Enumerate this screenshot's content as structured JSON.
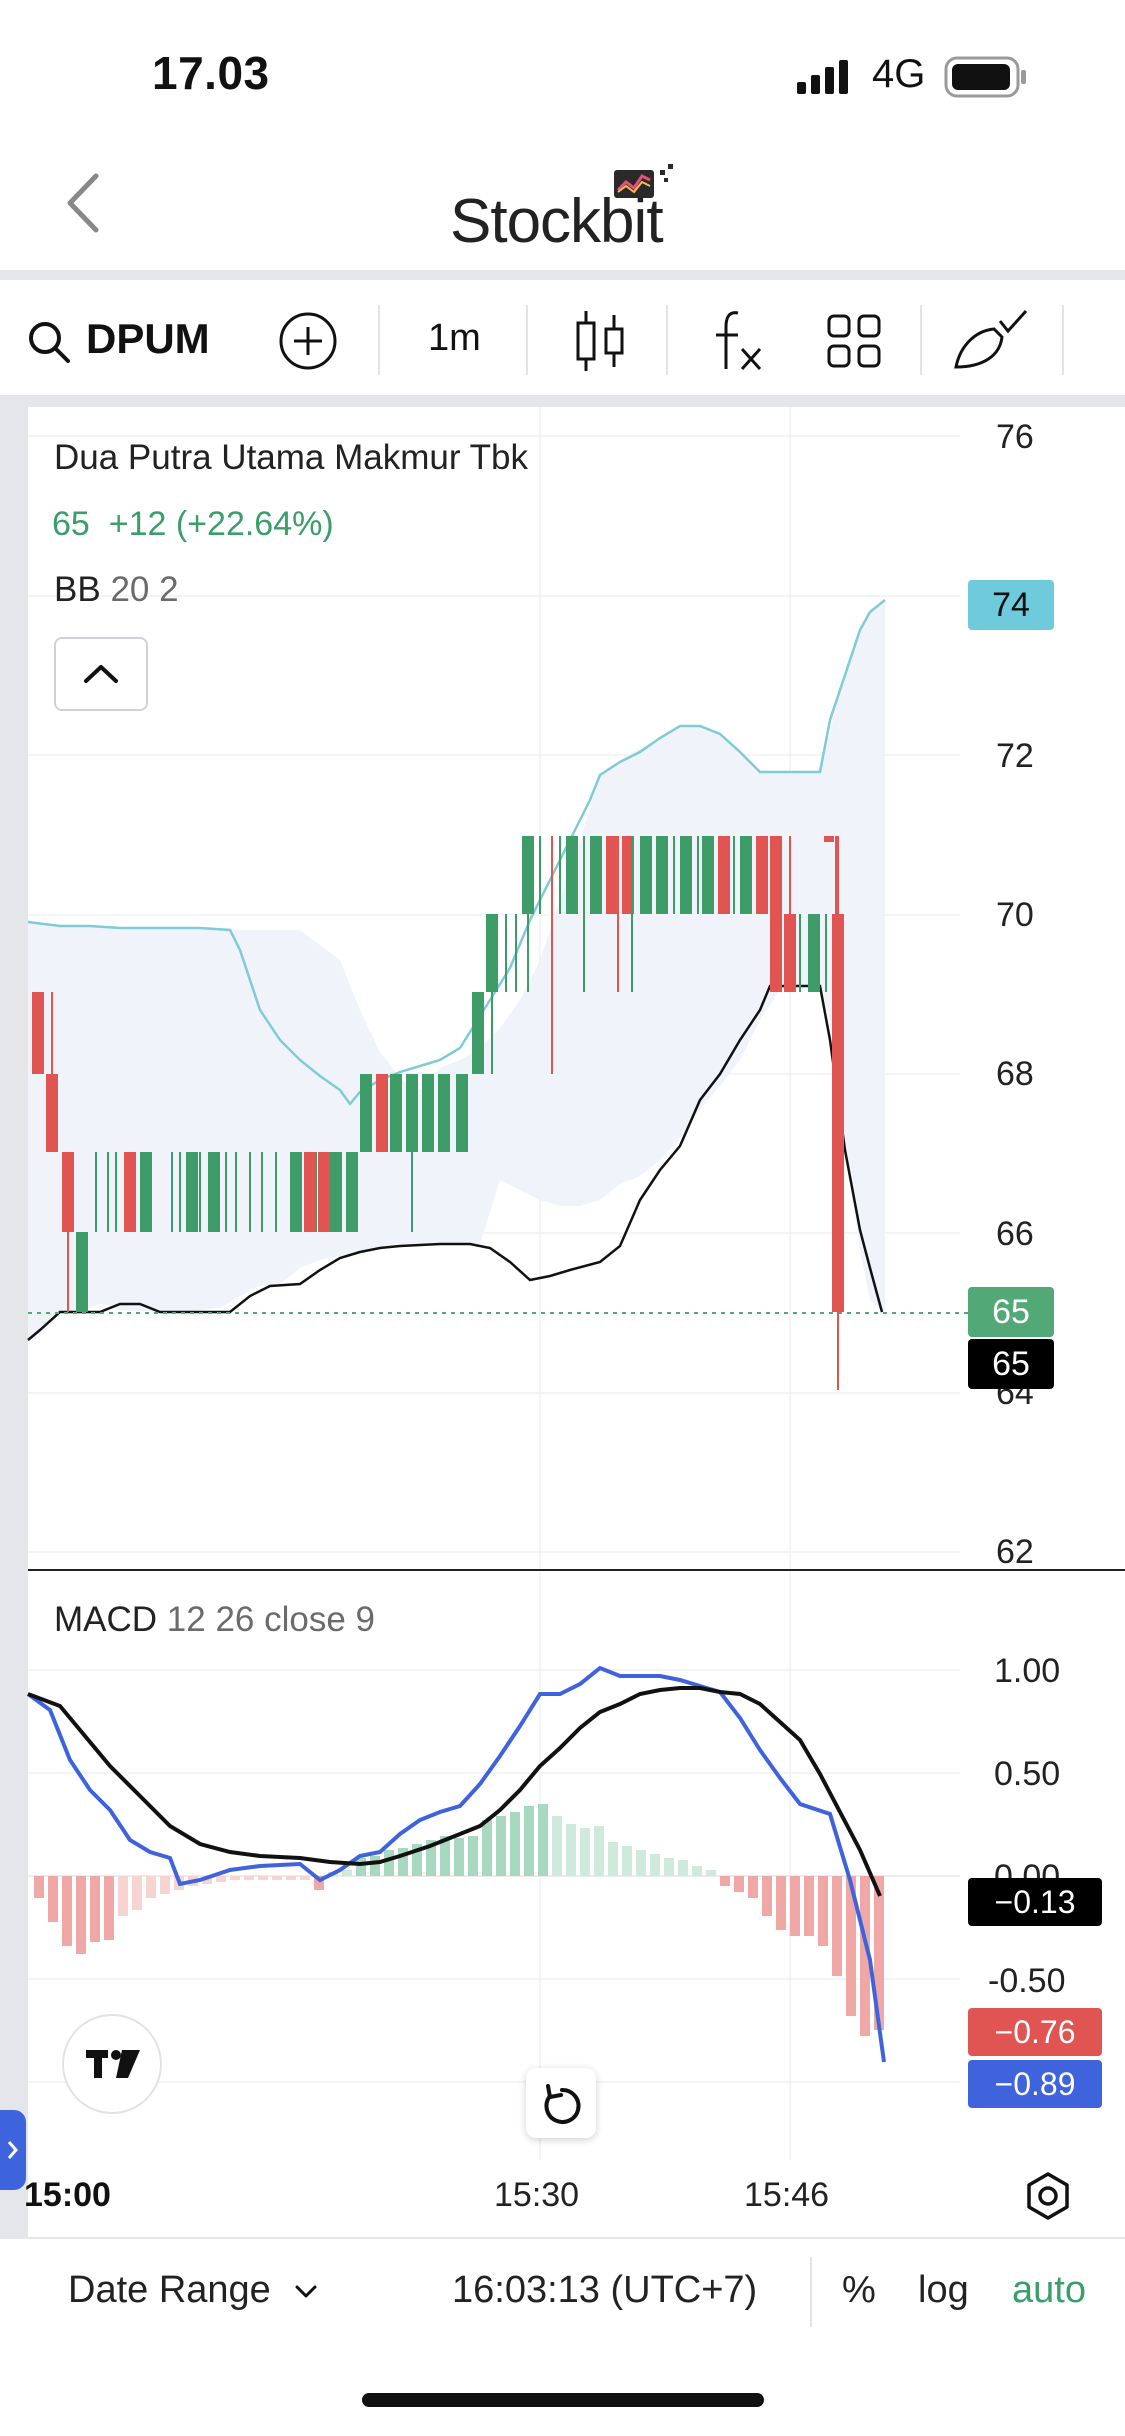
{
  "status_bar": {
    "time": "17.03",
    "network": "4G"
  },
  "header": {
    "brand": "Stockbit"
  },
  "toolbar": {
    "symbol": "DPUM",
    "interval": "1m"
  },
  "chart": {
    "company_name": "Dua Putra Utama Makmur Tbk",
    "price": "65",
    "change": "+12 (+22.64%)",
    "bb_label": "BB",
    "bb_params": "20 2",
    "macd_label": "MACD",
    "macd_params": "12 26 close 9",
    "price_axis": [
      "76",
      "74",
      "72",
      "70",
      "68",
      "66",
      "65",
      "65",
      "64",
      "62"
    ],
    "macd_axis": [
      "1.00",
      "0.50",
      "0.00",
      "-0.50"
    ],
    "badges": {
      "bb_upper": "74",
      "last_price": "65",
      "bb_lower": "65",
      "macd_hist": "−0.13",
      "signal": "−0.76",
      "macd": "−0.89"
    },
    "time_axis": [
      "15:00",
      "15:30",
      "15:46"
    ],
    "colors": {
      "up": "#3d9c68",
      "down": "#e05452",
      "bb_band": "#7fcbd6",
      "macd_line": "#3f63dd",
      "signal_line": "#111111",
      "price_badge": "#52a977",
      "bb_badge": "#6dcbdb"
    }
  },
  "bottom_bar": {
    "date_range": "Date Range",
    "timestamp": "16:03:13 (UTC+7)",
    "percent": "%",
    "log": "log",
    "auto": "auto"
  }
}
